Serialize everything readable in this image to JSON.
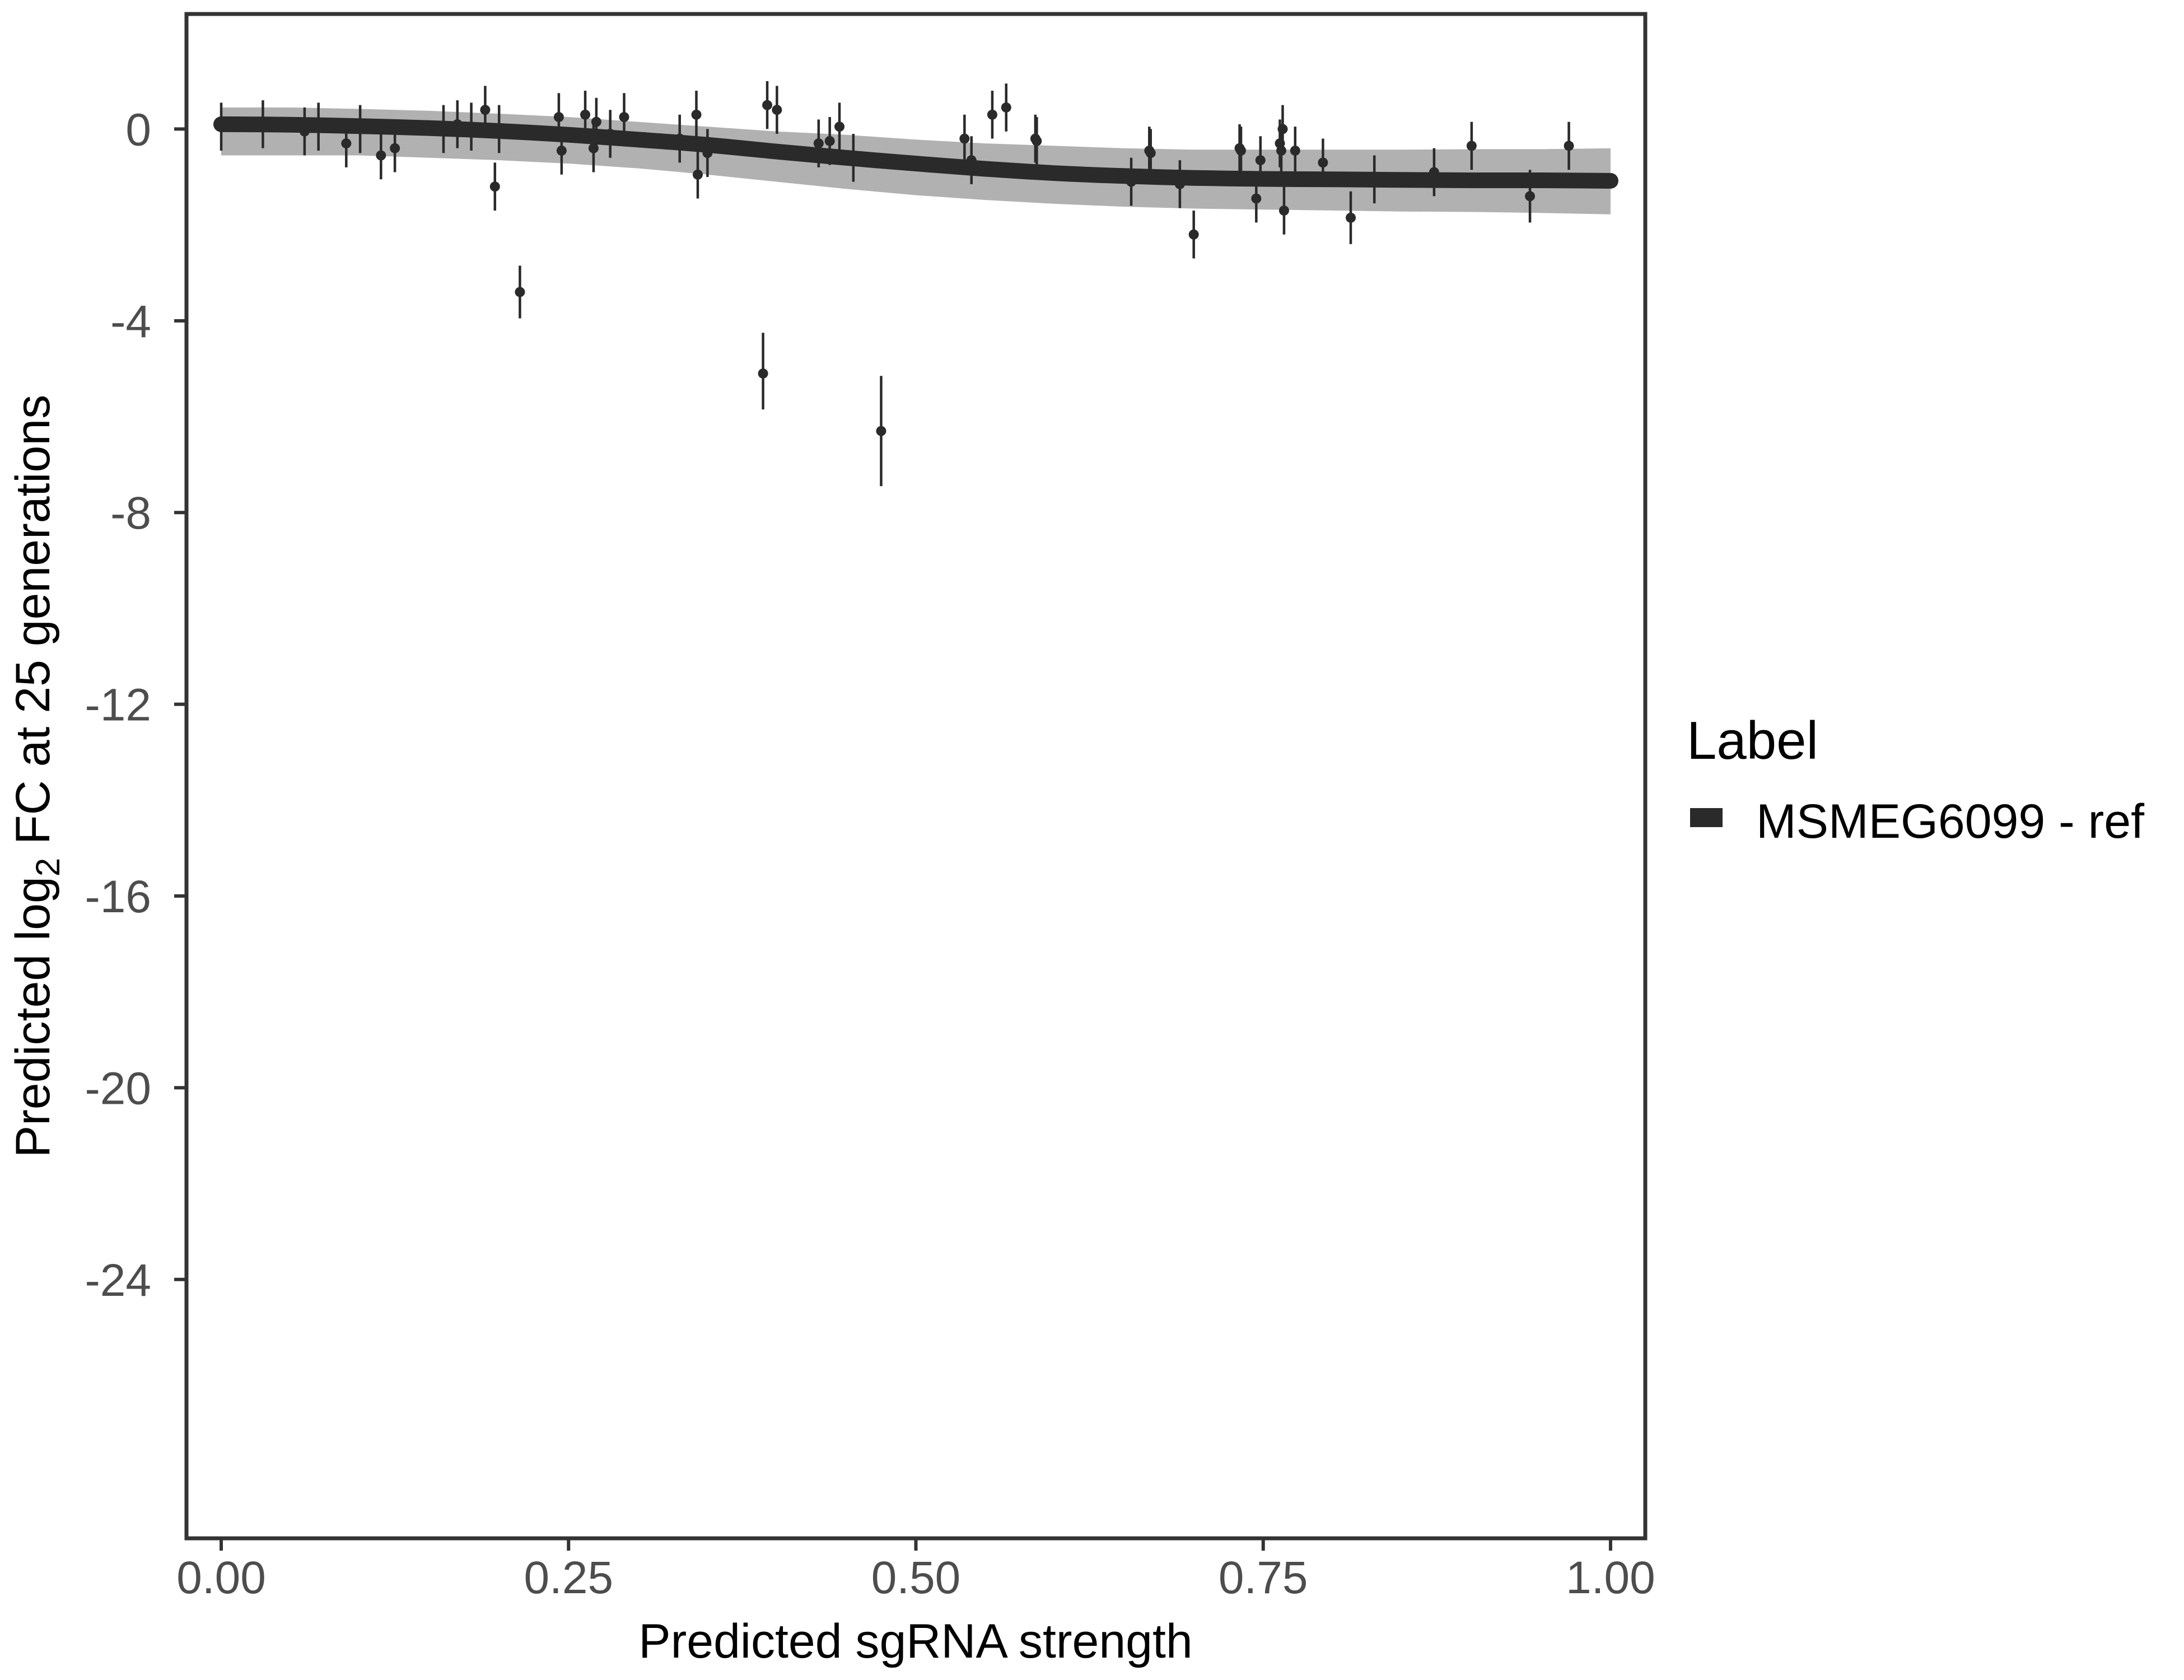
{
  "chart_data": {
    "type": "scatter",
    "title": "",
    "xlabel": "Predicted sgRNA strength",
    "ylabel_prefix": "Predicted  log",
    "ylabel_sub": "2",
    "ylabel_suffix": " FC at 25 generations",
    "xlim": [
      -0.025,
      1.025
    ],
    "ylim": [
      -29.4,
      2.4
    ],
    "x_ticks": [
      0,
      0.25,
      0.5,
      0.75,
      1
    ],
    "x_tick_labels": [
      "0.00",
      "0.25",
      "0.50",
      "0.75",
      "1.00"
    ],
    "y_ticks": [
      0,
      -4,
      -8,
      -12,
      -16,
      -20,
      -24
    ],
    "y_tick_labels": [
      "0",
      "-4",
      "-8",
      "-12",
      "-16",
      "-20",
      "-24"
    ],
    "grid": false,
    "legend": {
      "title": "Label",
      "position": "right",
      "entries": [
        {
          "label": "MSMEG6099 - ref",
          "color": "#2a2a2a"
        }
      ]
    },
    "colors": {
      "fit": "#2a2a2a",
      "band": "#a3a3a3",
      "points": "#2a2a2a",
      "axis_text": "#4d4d4d"
    },
    "fit": {
      "name": "MSMEG6099 - ref",
      "x": [
        0,
        0.05,
        0.1,
        0.15,
        0.2,
        0.25,
        0.3,
        0.35,
        0.4,
        0.45,
        0.5,
        0.55,
        0.6,
        0.65,
        0.7,
        0.75,
        0.8,
        0.85,
        0.9,
        0.95,
        1.0
      ],
      "y": [
        0.1,
        0.09,
        0.06,
        0.02,
        -0.04,
        -0.12,
        -0.22,
        -0.33,
        -0.47,
        -0.6,
        -0.72,
        -0.83,
        -0.92,
        -0.98,
        -1.02,
        -1.04,
        -1.05,
        -1.06,
        -1.07,
        -1.07,
        -1.08
      ],
      "lower": [
        -0.55,
        -0.55,
        -0.55,
        -0.6,
        -0.65,
        -0.72,
        -0.82,
        -0.95,
        -1.1,
        -1.25,
        -1.38,
        -1.48,
        -1.56,
        -1.62,
        -1.66,
        -1.68,
        -1.7,
        -1.72,
        -1.73,
        -1.75,
        -1.78
      ],
      "upper": [
        0.45,
        0.45,
        0.42,
        0.38,
        0.32,
        0.25,
        0.15,
        0.05,
        -0.05,
        -0.12,
        -0.22,
        -0.3,
        -0.35,
        -0.4,
        -0.43,
        -0.43,
        -0.43,
        -0.43,
        -0.42,
        -0.42,
        -0.4
      ]
    },
    "points": [
      {
        "x": 0.0,
        "y": 0.05,
        "lo": -0.45,
        "hi": 0.55
      },
      {
        "x": 0.03,
        "y": 0.1,
        "lo": -0.4,
        "hi": 0.6
      },
      {
        "x": 0.06,
        "y": -0.05,
        "lo": -0.55,
        "hi": 0.45
      },
      {
        "x": 0.07,
        "y": 0.05,
        "lo": -0.45,
        "hi": 0.55
      },
      {
        "x": 0.09,
        "y": -0.3,
        "lo": -0.8,
        "hi": 0.2
      },
      {
        "x": 0.1,
        "y": 0.0,
        "lo": -0.5,
        "hi": 0.5
      },
      {
        "x": 0.115,
        "y": -0.55,
        "lo": -1.05,
        "hi": -0.05
      },
      {
        "x": 0.125,
        "y": -0.4,
        "lo": -0.9,
        "hi": 0.1
      },
      {
        "x": 0.16,
        "y": 0.0,
        "lo": -0.5,
        "hi": 0.5
      },
      {
        "x": 0.17,
        "y": 0.1,
        "lo": -0.4,
        "hi": 0.6
      },
      {
        "x": 0.18,
        "y": 0.05,
        "lo": -0.45,
        "hi": 0.55
      },
      {
        "x": 0.19,
        "y": 0.4,
        "lo": -0.1,
        "hi": 0.9
      },
      {
        "x": 0.197,
        "y": -1.2,
        "lo": -1.7,
        "hi": -0.7
      },
      {
        "x": 0.2,
        "y": 0.0,
        "lo": -0.5,
        "hi": 0.5
      },
      {
        "x": 0.215,
        "y": -3.4,
        "lo": -3.95,
        "hi": -2.85
      },
      {
        "x": 0.243,
        "y": 0.25,
        "lo": -0.25,
        "hi": 0.75
      },
      {
        "x": 0.245,
        "y": -0.45,
        "lo": -0.95,
        "hi": 0.05
      },
      {
        "x": 0.262,
        "y": 0.3,
        "lo": -0.2,
        "hi": 0.8
      },
      {
        "x": 0.268,
        "y": -0.4,
        "lo": -0.9,
        "hi": 0.1
      },
      {
        "x": 0.27,
        "y": 0.15,
        "lo": -0.35,
        "hi": 0.65
      },
      {
        "x": 0.28,
        "y": -0.1,
        "lo": -0.6,
        "hi": 0.4
      },
      {
        "x": 0.29,
        "y": 0.25,
        "lo": -0.25,
        "hi": 0.75
      },
      {
        "x": 0.33,
        "y": -0.2,
        "lo": -0.7,
        "hi": 0.3
      },
      {
        "x": 0.342,
        "y": 0.3,
        "lo": -0.2,
        "hi": 0.8
      },
      {
        "x": 0.343,
        "y": -0.95,
        "lo": -1.45,
        "hi": -0.45
      },
      {
        "x": 0.35,
        "y": -0.5,
        "lo": -1.0,
        "hi": 0.0
      },
      {
        "x": 0.39,
        "y": -5.1,
        "lo": -5.85,
        "hi": -4.25
      },
      {
        "x": 0.393,
        "y": 0.5,
        "lo": 0.0,
        "hi": 1.0
      },
      {
        "x": 0.4,
        "y": 0.4,
        "lo": -0.1,
        "hi": 0.9
      },
      {
        "x": 0.43,
        "y": -0.3,
        "lo": -0.8,
        "hi": 0.2
      },
      {
        "x": 0.438,
        "y": -0.25,
        "lo": -0.75,
        "hi": 0.25
      },
      {
        "x": 0.445,
        "y": 0.05,
        "lo": -0.45,
        "hi": 0.55
      },
      {
        "x": 0.455,
        "y": -0.6,
        "lo": -1.1,
        "hi": -0.1
      },
      {
        "x": 0.475,
        "y": -6.3,
        "lo": -7.45,
        "hi": -5.15
      },
      {
        "x": 0.535,
        "y": -0.2,
        "lo": -0.7,
        "hi": 0.3
      },
      {
        "x": 0.54,
        "y": -0.65,
        "lo": -1.15,
        "hi": -0.15
      },
      {
        "x": 0.555,
        "y": 0.3,
        "lo": -0.2,
        "hi": 0.8
      },
      {
        "x": 0.565,
        "y": 0.45,
        "lo": -0.05,
        "hi": 0.95
      },
      {
        "x": 0.586,
        "y": -0.2,
        "lo": -0.7,
        "hi": 0.3
      },
      {
        "x": 0.587,
        "y": -0.25,
        "lo": -0.75,
        "hi": 0.25
      },
      {
        "x": 0.655,
        "y": -1.1,
        "lo": -1.6,
        "hi": -0.6
      },
      {
        "x": 0.668,
        "y": -0.45,
        "lo": -0.95,
        "hi": 0.05
      },
      {
        "x": 0.669,
        "y": -0.5,
        "lo": -1.0,
        "hi": 0.0
      },
      {
        "x": 0.69,
        "y": -1.15,
        "lo": -1.65,
        "hi": -0.65
      },
      {
        "x": 0.7,
        "y": -2.2,
        "lo": -2.7,
        "hi": -1.7
      },
      {
        "x": 0.733,
        "y": -0.4,
        "lo": -0.9,
        "hi": 0.1
      },
      {
        "x": 0.734,
        "y": -0.45,
        "lo": -0.95,
        "hi": 0.05
      },
      {
        "x": 0.745,
        "y": -1.45,
        "lo": -1.95,
        "hi": -0.95
      },
      {
        "x": 0.748,
        "y": -0.65,
        "lo": -1.15,
        "hi": -0.15
      },
      {
        "x": 0.762,
        "y": -0.3,
        "lo": -0.8,
        "hi": 0.2
      },
      {
        "x": 0.763,
        "y": -0.45,
        "lo": -0.95,
        "hi": 0.05
      },
      {
        "x": 0.764,
        "y": 0.0,
        "lo": -0.5,
        "hi": 0.5
      },
      {
        "x": 0.765,
        "y": -1.7,
        "lo": -2.2,
        "hi": -1.2
      },
      {
        "x": 0.773,
        "y": -0.45,
        "lo": -0.95,
        "hi": 0.05
      },
      {
        "x": 0.793,
        "y": -0.7,
        "lo": -1.2,
        "hi": -0.2
      },
      {
        "x": 0.813,
        "y": -1.85,
        "lo": -2.4,
        "hi": -1.3
      },
      {
        "x": 0.83,
        "y": -1.05,
        "lo": -1.55,
        "hi": -0.55
      },
      {
        "x": 0.873,
        "y": -0.9,
        "lo": -1.4,
        "hi": -0.4
      },
      {
        "x": 0.9,
        "y": -0.35,
        "lo": -0.85,
        "hi": 0.15
      },
      {
        "x": 0.942,
        "y": -1.4,
        "lo": -1.95,
        "hi": -0.85
      },
      {
        "x": 0.97,
        "y": -0.35,
        "lo": -0.85,
        "hi": 0.15
      }
    ]
  }
}
